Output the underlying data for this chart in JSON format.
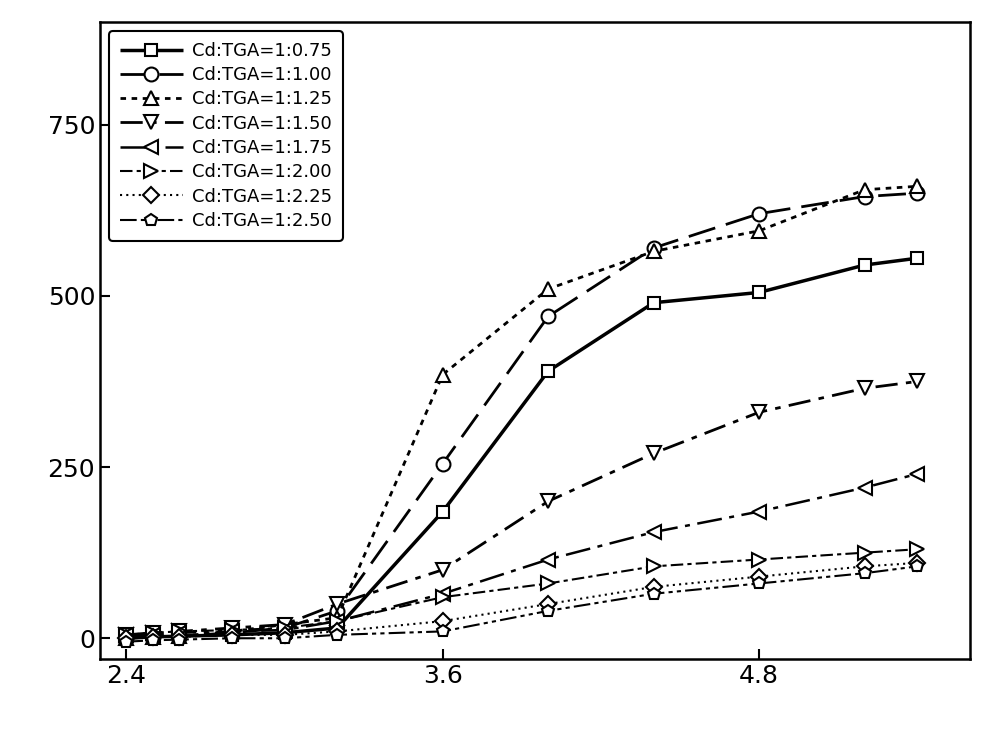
{
  "series": [
    {
      "label": "Cd:TGA=1:0.75",
      "marker": "s",
      "linewidth": 2.5,
      "color": "#000000",
      "markersize": 9,
      "x": [
        2.4,
        2.5,
        2.6,
        2.8,
        3.0,
        3.2,
        3.6,
        4.0,
        4.4,
        4.8,
        5.2,
        5.4
      ],
      "y": [
        0,
        2,
        3,
        5,
        8,
        15,
        185,
        390,
        490,
        505,
        545,
        555
      ]
    },
    {
      "label": "Cd:TGA=1:1.00",
      "marker": "o",
      "linewidth": 2.0,
      "color": "#000000",
      "markersize": 10,
      "x": [
        2.4,
        2.5,
        2.6,
        2.8,
        3.0,
        3.2,
        3.6,
        4.0,
        4.4,
        4.8,
        5.2,
        5.4
      ],
      "y": [
        0,
        2,
        3,
        8,
        15,
        40,
        255,
        470,
        570,
        620,
        645,
        650
      ]
    },
    {
      "label": "Cd:TGA=1:1.25",
      "marker": "^",
      "linewidth": 2.0,
      "color": "#000000",
      "markersize": 10,
      "x": [
        2.4,
        2.5,
        2.6,
        2.8,
        3.0,
        3.2,
        3.6,
        4.0,
        4.4,
        4.8,
        5.2,
        5.4
      ],
      "y": [
        0,
        2,
        3,
        10,
        20,
        30,
        385,
        510,
        565,
        595,
        655,
        660
      ]
    },
    {
      "label": "Cd:TGA=1:1.50",
      "marker": "v",
      "linewidth": 2.0,
      "color": "#000000",
      "markersize": 10,
      "x": [
        2.4,
        2.5,
        2.6,
        2.8,
        3.0,
        3.2,
        3.6,
        4.0,
        4.4,
        4.8,
        5.2,
        5.4
      ],
      "y": [
        5,
        8,
        10,
        15,
        20,
        50,
        100,
        200,
        270,
        330,
        365,
        375
      ]
    },
    {
      "label": "Cd:TGA=1:1.75",
      "marker": "<",
      "linewidth": 1.8,
      "color": "#000000",
      "markersize": 10,
      "x": [
        2.4,
        2.5,
        2.6,
        2.8,
        3.0,
        3.2,
        3.6,
        4.0,
        4.4,
        4.8,
        5.2,
        5.4
      ],
      "y": [
        5,
        5,
        8,
        10,
        12,
        25,
        65,
        115,
        155,
        185,
        220,
        240
      ]
    },
    {
      "label": "Cd:TGA=1:2.00",
      "marker": ">",
      "linewidth": 1.5,
      "color": "#000000",
      "markersize": 10,
      "x": [
        2.4,
        2.5,
        2.6,
        2.8,
        3.0,
        3.2,
        3.6,
        4.0,
        4.4,
        4.8,
        5.2,
        5.4
      ],
      "y": [
        5,
        8,
        10,
        12,
        15,
        25,
        60,
        80,
        105,
        115,
        125,
        130
      ]
    },
    {
      "label": "Cd:TGA=1:2.25",
      "marker": "D",
      "linewidth": 1.5,
      "color": "#000000",
      "markersize": 8,
      "x": [
        2.4,
        2.5,
        2.6,
        2.8,
        3.0,
        3.2,
        3.6,
        4.0,
        4.4,
        4.8,
        5.2,
        5.4
      ],
      "y": [
        0,
        2,
        2,
        5,
        5,
        10,
        25,
        50,
        75,
        90,
        105,
        110
      ]
    },
    {
      "label": "Cd:TGA=1:2.50",
      "marker": "p",
      "linewidth": 1.5,
      "color": "#000000",
      "markersize": 9,
      "x": [
        2.4,
        2.5,
        2.6,
        2.8,
        3.0,
        3.2,
        3.6,
        4.0,
        4.4,
        4.8,
        5.2,
        5.4
      ],
      "y": [
        -5,
        -3,
        -2,
        0,
        0,
        5,
        10,
        40,
        65,
        80,
        95,
        105
      ]
    }
  ],
  "xlim": [
    2.3,
    5.6
  ],
  "ylim": [
    -30,
    900
  ],
  "xticks": [
    2.4,
    3.6,
    4.8
  ],
  "yticks": [
    0,
    250,
    500,
    750
  ],
  "background_color": "#ffffff",
  "legend_loc": "upper left",
  "fontsize": 18
}
